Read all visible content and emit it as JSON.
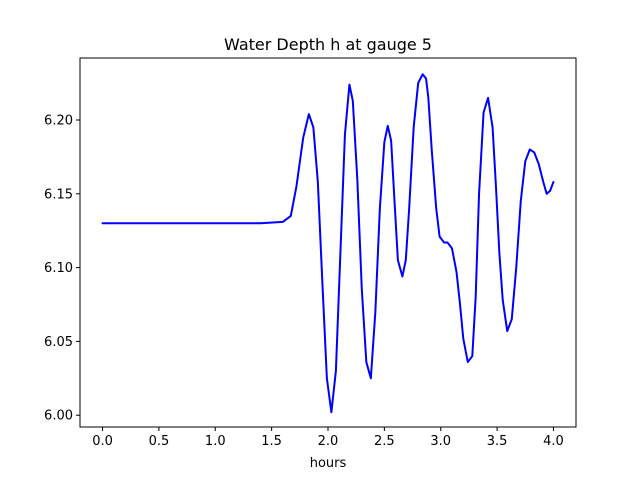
{
  "chart_data": {
    "type": "line",
    "title": "Water Depth h at gauge 5",
    "xlabel": "hours",
    "ylabel": "",
    "xlim": [
      -0.2,
      4.2
    ],
    "ylim": [
      5.992,
      6.242
    ],
    "grid": false,
    "x_ticks": [
      0.0,
      0.5,
      1.0,
      1.5,
      2.0,
      2.5,
      3.0,
      3.5,
      4.0
    ],
    "x_tick_labels": [
      "0.0",
      "0.5",
      "1.0",
      "1.5",
      "2.0",
      "2.5",
      "3.0",
      "3.5",
      "4.0"
    ],
    "y_ticks": [
      6.0,
      6.05,
      6.1,
      6.15,
      6.2
    ],
    "y_tick_labels": [
      "6.00",
      "6.05",
      "6.10",
      "6.15",
      "6.20"
    ],
    "series": [
      {
        "color": "#0000ff",
        "x": [
          0.0,
          0.5,
          1.0,
          1.1,
          1.4,
          1.6,
          1.67,
          1.72,
          1.78,
          1.83,
          1.87,
          1.91,
          1.95,
          1.99,
          2.03,
          2.07,
          2.11,
          2.15,
          2.19,
          2.22,
          2.26,
          2.3,
          2.34,
          2.38,
          2.42,
          2.46,
          2.5,
          2.53,
          2.56,
          2.59,
          2.62,
          2.66,
          2.69,
          2.72,
          2.76,
          2.8,
          2.84,
          2.87,
          2.89,
          2.92,
          2.96,
          2.99,
          3.03,
          3.06,
          3.1,
          3.14,
          3.17,
          3.2,
          3.24,
          3.28,
          3.31,
          3.34,
          3.38,
          3.42,
          3.46,
          3.49,
          3.52,
          3.55,
          3.59,
          3.63,
          3.67,
          3.71,
          3.75,
          3.79,
          3.83,
          3.87,
          3.91,
          3.94,
          3.97,
          4.0
        ],
        "y": [
          6.13,
          6.13,
          6.13,
          6.13,
          6.13,
          6.131,
          6.135,
          6.155,
          6.188,
          6.204,
          6.195,
          6.158,
          6.09,
          6.025,
          6.002,
          6.03,
          6.11,
          6.19,
          6.224,
          6.213,
          6.16,
          6.085,
          6.036,
          6.025,
          6.07,
          6.14,
          6.185,
          6.196,
          6.186,
          6.145,
          6.105,
          6.094,
          6.105,
          6.14,
          6.195,
          6.225,
          6.231,
          6.228,
          6.215,
          6.18,
          6.14,
          6.121,
          6.117,
          6.117,
          6.113,
          6.097,
          6.076,
          6.052,
          6.036,
          6.04,
          6.08,
          6.15,
          6.205,
          6.215,
          6.195,
          6.155,
          6.11,
          6.078,
          6.057,
          6.065,
          6.1,
          6.145,
          6.172,
          6.18,
          6.178,
          6.17,
          6.158,
          6.15,
          6.152,
          6.158
        ]
      }
    ]
  }
}
